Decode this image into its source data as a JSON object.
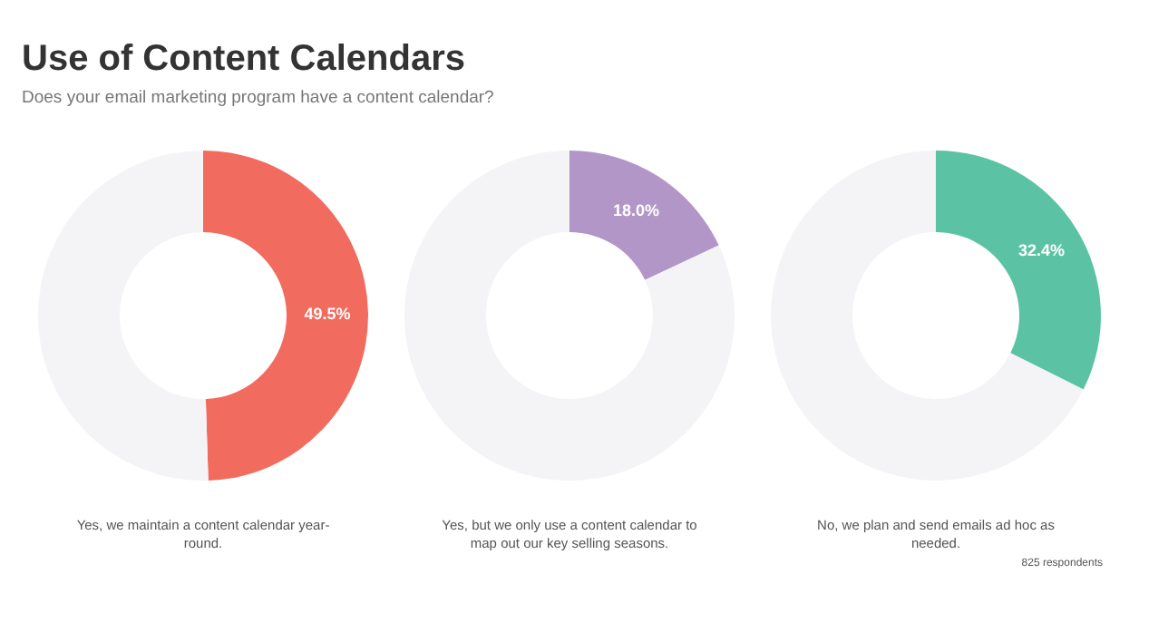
{
  "chart_data": [
    {
      "type": "donut",
      "title": "Use of Content Calendars",
      "subtitle": "Does your email marketing program have a content calendar?",
      "categories": [
        null,
        null
      ],
      "values": [
        49.5,
        50.5
      ],
      "colors": [
        "#f26b5f",
        "#f4f4f6"
      ],
      "value_labels": [
        "49.5%",
        null
      ],
      "xlabel": "Yes, we maintain a content calendar year-round."
    },
    {
      "type": "donut",
      "categories": [
        null,
        null
      ],
      "values": [
        18.0,
        82.0
      ],
      "colors": [
        "#b296c8",
        "#f4f4f6"
      ],
      "value_labels": [
        "18.0%",
        null
      ],
      "xlabel": "Yes, but we only use a content calendar to map out our key selling seasons."
    },
    {
      "type": "donut",
      "categories": [
        null,
        null
      ],
      "values": [
        32.4,
        67.6
      ],
      "colors": [
        "#5bc3a3",
        "#f4f4f6"
      ],
      "value_labels": [
        "32.4%",
        null
      ],
      "xlabel": "No, we plan and send emails ad hoc as needed.",
      "annotations": [
        "825 respondents"
      ]
    }
  ]
}
